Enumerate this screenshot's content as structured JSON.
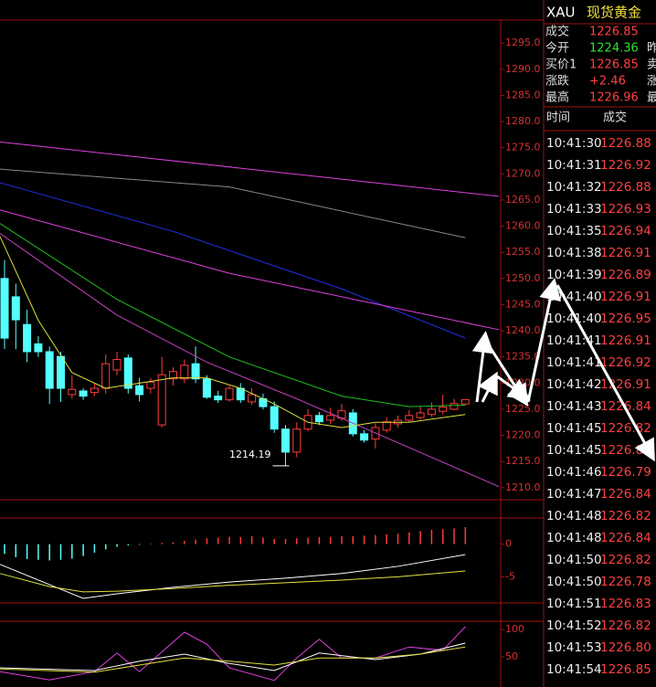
{
  "header": {
    "symbol": "XAU",
    "name": "现货黄金"
  },
  "quote": {
    "rows": [
      {
        "label": "成交",
        "value": "1226.85"
      },
      {
        "label": "今开",
        "value": "1224.36",
        "extra": "昨"
      },
      {
        "label": "买价1",
        "value": "1226.85",
        "extra": "卖"
      },
      {
        "label": "涨跌",
        "value": "+2.46",
        "extra": "涨"
      },
      {
        "label": "最高",
        "value": "1226.96",
        "extra": "最"
      }
    ]
  },
  "trades": {
    "columns": [
      "时间",
      "成交"
    ],
    "rows": [
      [
        "10:41:30",
        "1226.88"
      ],
      [
        "10:41:31",
        "1226.92"
      ],
      [
        "10:41:32",
        "1226.88"
      ],
      [
        "10:41:33",
        "1226.93"
      ],
      [
        "10:41:35",
        "1226.94"
      ],
      [
        "10:41:38",
        "1226.91"
      ],
      [
        "10:41:39",
        "1226.89"
      ],
      [
        "10:41:40",
        "1226.91"
      ],
      [
        "10:41:40",
        "1226.95"
      ],
      [
        "10:41:41",
        "1226.91"
      ],
      [
        "10:41:41",
        "1226.92"
      ],
      [
        "10:41:42",
        "1226.91"
      ],
      [
        "10:41:43",
        "1226.84"
      ],
      [
        "10:41:45",
        "1226.82"
      ],
      [
        "10:41:45",
        "1226.85"
      ],
      [
        "10:41:46",
        "1226.79"
      ],
      [
        "10:41:47",
        "1226.84"
      ],
      [
        "10:41:48",
        "1226.82"
      ],
      [
        "10:41:48",
        "1226.84"
      ],
      [
        "10:41:50",
        "1226.82"
      ],
      [
        "10:41:50",
        "1226.78"
      ],
      [
        "10:41:51",
        "1226.83"
      ],
      [
        "10:41:52",
        "1226.82"
      ],
      [
        "10:41:53",
        "1226.80"
      ],
      [
        "10:41:54",
        "1226.85"
      ]
    ]
  },
  "chart_data": [
    {
      "type": "candlestick",
      "up_color": "#ff3b3b",
      "down_color": "#54ffff",
      "ylim": [
        1207.7,
        1299.4
      ],
      "yticks": [
        {
          "value": 1295,
          "label": "1295.0"
        },
        {
          "value": 1290,
          "label": "1290.0"
        },
        {
          "value": 1285,
          "label": "1285.0"
        },
        {
          "value": 1280,
          "label": "1280.0"
        },
        {
          "value": 1275,
          "label": "1275.0"
        },
        {
          "value": 1270,
          "label": "1270.0"
        },
        {
          "value": 1265,
          "label": "1265.0"
        },
        {
          "value": 1260,
          "label": "1260.0"
        },
        {
          "value": 1255,
          "label": "1255.0"
        },
        {
          "value": 1250,
          "label": "1250.0"
        },
        {
          "value": 1245,
          "label": "1245.0"
        },
        {
          "value": 1240,
          "label": "1240.0"
        },
        {
          "value": 1235,
          "label": "1235.0"
        },
        {
          "value": 1230,
          "label": "1230.0"
        },
        {
          "value": 1225,
          "label": "1225.0"
        },
        {
          "value": 1220,
          "label": "1220.0"
        },
        {
          "value": 1215,
          "label": "1215.0"
        },
        {
          "value": 1210,
          "label": "1210.0"
        }
      ],
      "annotation": "1214.19",
      "candles": [
        {
          "o": 1250.0,
          "h": 1253.5,
          "l": 1236.5,
          "c": 1238.6
        },
        {
          "o": 1246.5,
          "h": 1249,
          "l": 1236.5,
          "c": 1242.1
        },
        {
          "o": 1241.2,
          "h": 1244,
          "l": 1234,
          "c": 1236.0
        },
        {
          "o": 1237.5,
          "h": 1239,
          "l": 1235,
          "c": 1236.0
        },
        {
          "o": 1236.0,
          "h": 1237,
          "l": 1226,
          "c": 1229.0
        },
        {
          "o": 1235.1,
          "h": 1236,
          "l": 1226.4,
          "c": 1229.0
        },
        {
          "o": 1227.8,
          "h": 1231.5,
          "l": 1227.0,
          "c": 1228.8
        },
        {
          "o": 1228.5,
          "h": 1229,
          "l": 1226.8,
          "c": 1227.5
        },
        {
          "o": 1228.2,
          "h": 1230,
          "l": 1227.5,
          "c": 1229.0
        },
        {
          "o": 1229.0,
          "h": 1235.5,
          "l": 1228,
          "c": 1233.7
        },
        {
          "o": 1232.5,
          "h": 1236,
          "l": 1231.5,
          "c": 1234.5
        },
        {
          "o": 1234.8,
          "h": 1235.5,
          "l": 1228,
          "c": 1229.0
        },
        {
          "o": 1229.5,
          "h": 1231,
          "l": 1226.5,
          "c": 1227.8
        },
        {
          "o": 1229.0,
          "h": 1231,
          "l": 1228,
          "c": 1230.2
        },
        {
          "o": 1222.0,
          "h": 1235,
          "l": 1221.5,
          "c": 1231.6
        },
        {
          "o": 1230.8,
          "h": 1233,
          "l": 1229.5,
          "c": 1232.2
        },
        {
          "o": 1230.8,
          "h": 1234.5,
          "l": 1230,
          "c": 1233.4
        },
        {
          "o": 1233.7,
          "h": 1237,
          "l": 1230,
          "c": 1230.8
        },
        {
          "o": 1230.8,
          "h": 1231.5,
          "l": 1227,
          "c": 1227.3
        },
        {
          "o": 1227.5,
          "h": 1228.5,
          "l": 1226.2,
          "c": 1226.8
        },
        {
          "o": 1226.8,
          "h": 1229.5,
          "l": 1226.5,
          "c": 1229.0
        },
        {
          "o": 1229.0,
          "h": 1230,
          "l": 1226.2,
          "c": 1226.8
        },
        {
          "o": 1226.4,
          "h": 1229,
          "l": 1225.8,
          "c": 1227.8
        },
        {
          "o": 1227.0,
          "h": 1228,
          "l": 1225,
          "c": 1225.5
        },
        {
          "o": 1225.5,
          "h": 1226.5,
          "l": 1220.5,
          "c": 1221.2
        },
        {
          "o": 1221.2,
          "h": 1222,
          "l": 1214.19,
          "c": 1216.8
        },
        {
          "o": 1216.8,
          "h": 1222.5,
          "l": 1215.8,
          "c": 1221.2
        },
        {
          "o": 1221.2,
          "h": 1225,
          "l": 1220.8,
          "c": 1223.8
        },
        {
          "o": 1223.8,
          "h": 1224.5,
          "l": 1222,
          "c": 1222.6
        },
        {
          "o": 1222.9,
          "h": 1225.3,
          "l": 1222.2,
          "c": 1223.8
        },
        {
          "o": 1223.3,
          "h": 1226,
          "l": 1222.8,
          "c": 1224.7
        },
        {
          "o": 1224.3,
          "h": 1225,
          "l": 1219.8,
          "c": 1220.3
        },
        {
          "o": 1220.3,
          "h": 1221,
          "l": 1218.6,
          "c": 1219.1
        },
        {
          "o": 1219.3,
          "h": 1222.3,
          "l": 1217.5,
          "c": 1221.5
        },
        {
          "o": 1221.0,
          "h": 1223.5,
          "l": 1220.5,
          "c": 1222.6
        },
        {
          "o": 1222.2,
          "h": 1223.8,
          "l": 1221.5,
          "c": 1222.9
        },
        {
          "o": 1222.9,
          "h": 1224.8,
          "l": 1222.5,
          "c": 1223.8
        },
        {
          "o": 1223.4,
          "h": 1225.5,
          "l": 1223,
          "c": 1224.3
        },
        {
          "o": 1224.0,
          "h": 1226.3,
          "l": 1223.6,
          "c": 1225.0
        },
        {
          "o": 1224.6,
          "h": 1227.8,
          "l": 1224,
          "c": 1225.4
        },
        {
          "o": 1225.0,
          "h": 1227,
          "l": 1224.8,
          "c": 1226.1
        },
        {
          "o": 1226.0,
          "h": 1226.96,
          "l": 1225.8,
          "c": 1226.85
        }
      ],
      "series": [
        {
          "color": "#e040e0",
          "x": [
            -0.4,
            44
          ],
          "values": [
            1276.1,
            1265.7
          ]
        },
        {
          "color": "#888888",
          "x": [
            -0.4,
            20,
            41
          ],
          "values": [
            1270.9,
            1267.5,
            1257.8
          ]
        },
        {
          "color": "#2030e0",
          "x": [
            -0.4,
            15,
            30,
            41
          ],
          "values": [
            1268.3,
            1259,
            1248,
            1238.6
          ]
        },
        {
          "color": "#e040e0",
          "x": [
            -0.4,
            20,
            44
          ],
          "values": [
            1263.1,
            1251.0,
            1240.2
          ]
        },
        {
          "color": "#20c020",
          "x": [
            -0.4,
            10,
            20,
            30,
            36,
            41
          ],
          "values": [
            1260.5,
            1246,
            1235,
            1227.5,
            1225.5,
            1225.8
          ]
        },
        {
          "color": "#c040c0",
          "x": [
            -0.4,
            10,
            18,
            26,
            44
          ],
          "values": [
            1258.6,
            1243,
            1234,
            1227,
            1210.2
          ]
        },
        {
          "color": "#e0e040",
          "x": [
            -0.4,
            3,
            6,
            9,
            12,
            15,
            18,
            21,
            24,
            27,
            30,
            33,
            36,
            41
          ],
          "values": [
            1258,
            1242,
            1232,
            1229,
            1230,
            1231,
            1231,
            1229,
            1226,
            1222.5,
            1221.5,
            1222.5,
            1222.5,
            1224
          ]
        }
      ]
    },
    {
      "type": "bar",
      "up_color": "#ff3b3b",
      "down_color": "#54ffff",
      "ylim": [
        -9,
        4
      ],
      "yticks": [
        0,
        -5
      ],
      "values": [
        -1.5,
        -2.0,
        -2.3,
        -2.4,
        -2.5,
        -2.4,
        -2.2,
        -1.8,
        -1.3,
        -0.8,
        -0.4,
        -0.2,
        -0.1,
        0.1,
        0.2,
        0.3,
        0.5,
        0.7,
        0.9,
        1.0,
        1.1,
        1.1,
        1.2,
        1.0,
        0.8,
        0.8,
        0.9,
        1.0,
        1.1,
        1.1,
        1.2,
        1.2,
        1.3,
        1.4,
        1.5,
        1.6,
        1.8,
        2.0,
        2.2,
        2.3,
        2.4,
        2.6
      ],
      "series": [
        {
          "color": "#ffffff",
          "x": [
            -0.4,
            4,
            7,
            10,
            15,
            20,
            25,
            30,
            35,
            41
          ],
          "values": [
            -3.1,
            -6.2,
            -8.3,
            -7.6,
            -6.6,
            -5.8,
            -5.2,
            -4.5,
            -3.4,
            -1.6
          ]
        },
        {
          "color": "#e0e040",
          "x": [
            -0.4,
            4,
            7,
            10,
            15,
            20,
            25,
            30,
            35,
            41
          ],
          "values": [
            -4.5,
            -6.5,
            -7.3,
            -7.2,
            -6.8,
            -6.3,
            -5.9,
            -5.5,
            -5.0,
            -4.1
          ]
        }
      ]
    },
    {
      "type": "line",
      "ylim": [
        -5,
        115
      ],
      "yticks": [
        100,
        50
      ],
      "series": [
        {
          "color": "#e040e0",
          "x": [
            -0.4,
            4,
            8,
            10,
            12,
            16,
            18,
            20,
            24,
            26,
            28,
            30,
            33,
            36,
            39,
            41
          ],
          "values": [
            23,
            8,
            23,
            57,
            23,
            95,
            73,
            30,
            7,
            48,
            82,
            48,
            48,
            68,
            62,
            105
          ]
        },
        {
          "color": "#ffffff",
          "x": [
            -0.4,
            8,
            12,
            16,
            20,
            24,
            28,
            33,
            37,
            41
          ],
          "values": [
            30,
            25,
            42,
            55,
            38,
            25,
            57,
            45,
            55,
            75
          ]
        },
        {
          "color": "#e0e040",
          "x": [
            -0.4,
            8,
            12,
            16,
            20,
            24,
            28,
            33,
            37,
            41
          ],
          "values": [
            28,
            22,
            35,
            48,
            42,
            35,
            48,
            48,
            55,
            68
          ]
        }
      ]
    }
  ]
}
